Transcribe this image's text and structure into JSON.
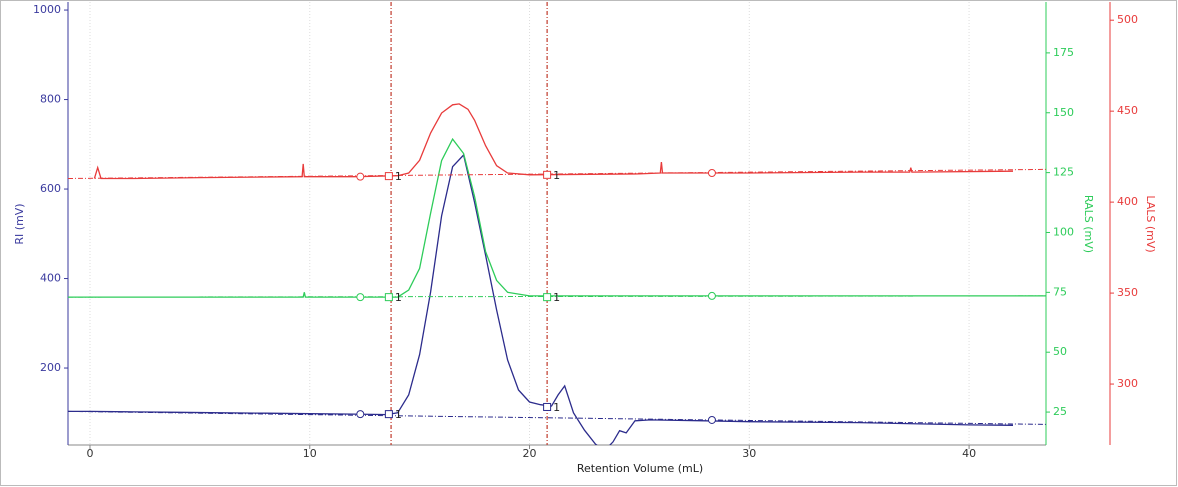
{
  "chart_data": {
    "type": "line",
    "xlabel": "Retention Volume (mL)",
    "ylabel": "RI (mV)",
    "y2label": "RALS (mV)",
    "y3label": "LALS (mV)",
    "xlim": [
      -1,
      43.5
    ],
    "xticks": [
      0,
      10,
      20,
      30,
      40
    ],
    "ylim": [
      28,
      1018
    ],
    "yticks": [
      200,
      400,
      600,
      800,
      1000
    ],
    "y2lim": [
      11.25,
      196.25
    ],
    "y2ticks": [
      25,
      50,
      75,
      100,
      125,
      150,
      175
    ],
    "y3lim": [
      266.5,
      510
    ],
    "y3ticks": [
      300,
      350,
      400,
      450,
      500
    ],
    "grid": true,
    "axis_colors": {
      "y": "#3a3a9e",
      "y2": "#2ecc5a",
      "y3": "#e83b3b"
    },
    "cursors": {
      "color": "#c0392b",
      "x": [
        13.7,
        20.8
      ]
    },
    "series": [
      {
        "axis": "y",
        "color": "#2c2c8c",
        "x": [
          -1,
          0,
          2,
          4,
          6,
          8,
          10,
          12,
          13.5,
          14,
          14.5,
          15,
          15.5,
          16,
          16.5,
          17,
          17.5,
          18,
          18.5,
          19,
          19.5,
          20,
          20.5,
          21,
          21.3,
          21.6,
          22,
          22.5,
          23,
          23.4,
          23.8,
          24.1,
          24.4,
          24.8,
          25.5,
          28,
          30,
          35,
          40,
          42
        ],
        "values": [
          103,
          103,
          102,
          101,
          100,
          99,
          98,
          97,
          96,
          100,
          140,
          230,
          370,
          540,
          650,
          676,
          570,
          452,
          330,
          218,
          151,
          124,
          118,
          115,
          140,
          160,
          100,
          61,
          30,
          15,
          35,
          60,
          55,
          82,
          84,
          82,
          80,
          78,
          73,
          72
        ],
        "baseline": {
          "x": [
            -1,
            43.5
          ],
          "values": [
            103,
            74
          ]
        },
        "circles": {
          "x": [
            12.3,
            28.3
          ],
          "values": [
            97,
            84
          ]
        },
        "squares": {
          "x": [
            13.6,
            20.8
          ],
          "values": [
            97,
            113
          ],
          "labels": [
            "1",
            "1"
          ]
        }
      },
      {
        "axis": "y2",
        "color": "#2ecc5a",
        "x": [
          -1,
          0,
          5,
          9.7,
          9.75,
          9.8,
          12,
          14,
          14.5,
          15,
          15.5,
          16,
          16.5,
          17,
          17.5,
          18,
          18.5,
          19,
          20,
          25,
          30,
          35,
          43.5
        ],
        "values": [
          73,
          73,
          73,
          73,
          75,
          73,
          73,
          73,
          76,
          85,
          108,
          130,
          139,
          133,
          115,
          92,
          80,
          75,
          73.5,
          73.5,
          73.5,
          73.5,
          73.5
        ],
        "baseline": {
          "x": [
            -1,
            43.5
          ],
          "values": [
            73,
            73.5
          ]
        },
        "circles": {
          "x": [
            12.3,
            28.3
          ],
          "values": [
            73,
            73.5
          ]
        },
        "squares": {
          "x": [
            13.6,
            20.8
          ],
          "values": [
            73,
            73
          ],
          "labels": [
            "1",
            "1"
          ]
        }
      },
      {
        "axis": "y3",
        "color": "#e83b3b",
        "x": [
          0.2,
          0.35,
          0.5,
          2,
          5,
          9.65,
          9.7,
          9.75,
          12,
          14,
          14.5,
          15,
          15.5,
          16,
          16.5,
          16.8,
          17.2,
          17.5,
          18,
          18.5,
          19,
          20,
          25,
          25.95,
          26,
          26.05,
          30,
          35,
          37.3,
          37.35,
          37.4,
          42
        ],
        "values": [
          413,
          419,
          413,
          413,
          413.5,
          414,
          421,
          414,
          414,
          414.5,
          416,
          423,
          438,
          449,
          453.5,
          454,
          451,
          445,
          431,
          420,
          416,
          415,
          415.5,
          416,
          422,
          416,
          416,
          416.5,
          416.5,
          419,
          416.5,
          417
        ],
        "baseline": {
          "x": [
            -1,
            43.5
          ],
          "values": [
            413,
            418
          ]
        },
        "circles": {
          "x": [
            12.3,
            28.3
          ],
          "values": [
            414,
            416
          ]
        },
        "squares": {
          "x": [
            13.6,
            20.8
          ],
          "values": [
            414.3,
            415
          ],
          "labels": [
            "1",
            "1"
          ]
        }
      }
    ]
  }
}
